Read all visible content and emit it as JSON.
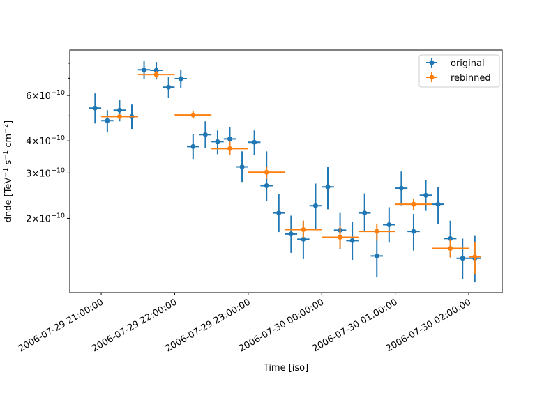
{
  "chart_data": {
    "type": "scatter",
    "xlabel": "Time [iso]",
    "ylabel": {
      "base": "dnde [TeV",
      "parts": [
        {
          "text": "dnde [TeV",
          "sup": false
        },
        {
          "text": "−1",
          "sup": true
        },
        {
          "text": " s",
          "sup": false
        },
        {
          "text": "−1",
          "sup": true
        },
        {
          "text": " cm",
          "sup": false
        },
        {
          "text": "−2",
          "sup": true
        },
        {
          "text": "]",
          "sup": false
        }
      ]
    },
    "yscale": "log",
    "ylim": [
      1.03e-10,
      9e-10
    ],
    "xlim": [
      "2006-07-29T20:34:20",
      "2006-07-30T02:27:20"
    ],
    "grid": false,
    "legend_position": "top-right",
    "x_ticks": [
      {
        "value": "2006-07-29T21:00:00",
        "label": "2006-07-29 21:00:00"
      },
      {
        "value": "2006-07-29T22:00:00",
        "label": "2006-07-29 22:00:00"
      },
      {
        "value": "2006-07-29T23:00:00",
        "label": "2006-07-29 23:00:00"
      },
      {
        "value": "2006-07-30T00:00:00",
        "label": "2006-07-30 00:00:00"
      },
      {
        "value": "2006-07-30T01:00:00",
        "label": "2006-07-30 01:00:00"
      },
      {
        "value": "2006-07-30T02:00:00",
        "label": "2006-07-30 02:00:00"
      }
    ],
    "y_ticks": [
      {
        "value": 2e-10,
        "mantissa": "2",
        "base": "×10",
        "exponent": "−10"
      },
      {
        "value": 3e-10,
        "mantissa": "3",
        "base": "×10",
        "exponent": "−10"
      },
      {
        "value": 4e-10,
        "mantissa": "4",
        "base": "×10",
        "exponent": "−10"
      },
      {
        "value": 6e-10,
        "mantissa": "6",
        "base": "×10",
        "exponent": "−10"
      }
    ],
    "y_minor_ticks": [
      5e-10,
      7e-10,
      8e-10
    ],
    "series": [
      {
        "name": "original",
        "color": "#1f77b4",
        "points": [
          {
            "t_start": "2006-07-29T20:50",
            "t_end": "2006-07-29T21:00",
            "y": 5.36e-10,
            "y_lo": 4.67e-10,
            "y_hi": 6.11e-10
          },
          {
            "t_start": "2006-07-29T21:00",
            "t_end": "2006-07-29T21:10",
            "y": 4.79e-10,
            "y_lo": 4.31e-10,
            "y_hi": 5.26e-10
          },
          {
            "t_start": "2006-07-29T21:10",
            "t_end": "2006-07-29T21:20",
            "y": 5.26e-10,
            "y_lo": 4.76e-10,
            "y_hi": 5.78e-10
          },
          {
            "t_start": "2006-07-29T21:20",
            "t_end": "2006-07-29T21:30",
            "y": 4.97e-10,
            "y_lo": 4.45e-10,
            "y_hi": 5.53e-10
          },
          {
            "t_start": "2006-07-29T21:30",
            "t_end": "2006-07-29T21:40",
            "y": 7.55e-10,
            "y_lo": 6.97e-10,
            "y_hi": 8.14e-10
          },
          {
            "t_start": "2006-07-29T21:40",
            "t_end": "2006-07-29T21:50",
            "y": 7.51e-10,
            "y_lo": 6.92e-10,
            "y_hi": 8.09e-10
          },
          {
            "t_start": "2006-07-29T21:50",
            "t_end": "2006-07-29T22:00",
            "y": 6.46e-10,
            "y_lo": 5.89e-10,
            "y_hi": 7.1e-10
          },
          {
            "t_start": "2006-07-29T22:00",
            "t_end": "2006-07-29T22:10",
            "y": 6.97e-10,
            "y_lo": 6.42e-10,
            "y_hi": 7.55e-10
          },
          {
            "t_start": "2006-07-29T22:10",
            "t_end": "2006-07-29T22:20",
            "y": 3.8e-10,
            "y_lo": 3.4e-10,
            "y_hi": 4.26e-10
          },
          {
            "t_start": "2006-07-29T22:20",
            "t_end": "2006-07-29T22:30",
            "y": 4.23e-10,
            "y_lo": 3.76e-10,
            "y_hi": 4.76e-10
          },
          {
            "t_start": "2006-07-29T22:30",
            "t_end": "2006-07-29T22:40",
            "y": 3.97e-10,
            "y_lo": 3.55e-10,
            "y_hi": 4.39e-10
          },
          {
            "t_start": "2006-07-29T22:40",
            "t_end": "2006-07-29T22:50",
            "y": 4.07e-10,
            "y_lo": 3.62e-10,
            "y_hi": 4.53e-10
          },
          {
            "t_start": "2006-07-29T22:50",
            "t_end": "2006-07-29T23:00",
            "y": 3.17e-10,
            "y_lo": 2.77e-10,
            "y_hi": 3.64e-10
          },
          {
            "t_start": "2006-07-29T23:00",
            "t_end": "2006-07-29T23:10",
            "y": 3.95e-10,
            "y_lo": 3.53e-10,
            "y_hi": 4.39e-10
          },
          {
            "t_start": "2006-07-29T23:10",
            "t_end": "2006-07-29T23:20",
            "y": 2.68e-10,
            "y_lo": 2.34e-10,
            "y_hi": 3.64e-10
          },
          {
            "t_start": "2006-07-29T23:20",
            "t_end": "2006-07-29T23:30",
            "y": 2.1e-10,
            "y_lo": 1.77e-10,
            "y_hi": 2.49e-10
          },
          {
            "t_start": "2006-07-29T23:30",
            "t_end": "2006-07-29T23:40",
            "y": 1.74e-10,
            "y_lo": 1.47e-10,
            "y_hi": 2.05e-10
          },
          {
            "t_start": "2006-07-29T23:40",
            "t_end": "2006-07-29T23:50",
            "y": 1.66e-10,
            "y_lo": 1.39e-10,
            "y_hi": 1.96e-10
          },
          {
            "t_start": "2006-07-29T23:50",
            "t_end": "2006-07-30T00:00",
            "y": 2.24e-10,
            "y_lo": 1.82e-10,
            "y_hi": 2.73e-10
          },
          {
            "t_start": "2006-07-30T00:00",
            "t_end": "2006-07-30T00:10",
            "y": 2.65e-10,
            "y_lo": 2.17e-10,
            "y_hi": 3.17e-10
          },
          {
            "t_start": "2006-07-30T00:10",
            "t_end": "2006-07-30T00:20",
            "y": 1.8e-10,
            "y_lo": 1.52e-10,
            "y_hi": 2.1e-10
          },
          {
            "t_start": "2006-07-30T00:20",
            "t_end": "2006-07-30T00:30",
            "y": 1.64e-10,
            "y_lo": 1.38e-10,
            "y_hi": 1.94e-10
          },
          {
            "t_start": "2006-07-30T00:30",
            "t_end": "2006-07-30T00:40",
            "y": 2.1e-10,
            "y_lo": 1.79e-10,
            "y_hi": 2.5e-10
          },
          {
            "t_start": "2006-07-30T00:40",
            "t_end": "2006-07-30T00:50",
            "y": 1.43e-10,
            "y_lo": 1.18e-10,
            "y_hi": 1.79e-10
          },
          {
            "t_start": "2006-07-30T00:50",
            "t_end": "2006-07-30T01:00",
            "y": 1.89e-10,
            "y_lo": 1.61e-10,
            "y_hi": 2.21e-10
          },
          {
            "t_start": "2006-07-30T01:00",
            "t_end": "2006-07-30T01:10",
            "y": 2.62e-10,
            "y_lo": 2.25e-10,
            "y_hi": 3.04e-10
          },
          {
            "t_start": "2006-07-30T01:10",
            "t_end": "2006-07-30T01:20",
            "y": 1.78e-10,
            "y_lo": 1.5e-10,
            "y_hi": 2.08e-10
          },
          {
            "t_start": "2006-07-30T01:20",
            "t_end": "2006-07-30T01:30",
            "y": 2.46e-10,
            "y_lo": 2.14e-10,
            "y_hi": 2.82e-10
          },
          {
            "t_start": "2006-07-30T01:30",
            "t_end": "2006-07-30T01:40",
            "y": 2.27e-10,
            "y_lo": 1.9e-10,
            "y_hi": 2.65e-10
          },
          {
            "t_start": "2006-07-30T01:40",
            "t_end": "2006-07-30T01:50",
            "y": 1.67e-10,
            "y_lo": 1.41e-10,
            "y_hi": 1.96e-10
          },
          {
            "t_start": "2006-07-30T01:50",
            "t_end": "2006-07-30T02:00",
            "y": 1.4e-10,
            "y_lo": 1.16e-10,
            "y_hi": 1.67e-10
          },
          {
            "t_start": "2006-07-30T02:00",
            "t_end": "2006-07-30T02:10",
            "y": 1.4e-10,
            "y_lo": 1.13e-10,
            "y_hi": 1.71e-10
          }
        ]
      },
      {
        "name": "rebinned",
        "color": "#ff7f0e",
        "points": [
          {
            "t_start": "2006-07-29T21:00",
            "t_end": "2006-07-29T21:30",
            "y": 4.97e-10,
            "y_lo": 4.85e-10,
            "y_hi": 5.1e-10
          },
          {
            "t_start": "2006-07-29T21:30",
            "t_end": "2006-07-29T22:00",
            "y": 7.23e-10,
            "y_lo": 7.01e-10,
            "y_hi": 7.46e-10
          },
          {
            "t_start": "2006-07-29T22:00",
            "t_end": "2006-07-29T22:30",
            "y": 5.04e-10,
            "y_lo": 4.88e-10,
            "y_hi": 5.23e-10
          },
          {
            "t_start": "2006-07-29T22:30",
            "t_end": "2006-07-29T23:00",
            "y": 3.73e-10,
            "y_lo": 3.53e-10,
            "y_hi": 3.97e-10
          },
          {
            "t_start": "2006-07-29T23:00",
            "t_end": "2006-07-29T23:30",
            "y": 3.02e-10,
            "y_lo": 2.85e-10,
            "y_hi": 3.17e-10
          },
          {
            "t_start": "2006-07-29T23:30",
            "t_end": "2006-07-30T00:00",
            "y": 1.81e-10,
            "y_lo": 1.68e-10,
            "y_hi": 1.96e-10
          },
          {
            "t_start": "2006-07-30T00:00",
            "t_end": "2006-07-30T00:30",
            "y": 1.69e-10,
            "y_lo": 1.53e-10,
            "y_hi": 1.86e-10
          },
          {
            "t_start": "2006-07-30T00:30",
            "t_end": "2006-07-30T01:00",
            "y": 1.78e-10,
            "y_lo": 1.64e-10,
            "y_hi": 1.91e-10
          },
          {
            "t_start": "2006-07-30T01:00",
            "t_end": "2006-07-30T01:30",
            "y": 2.27e-10,
            "y_lo": 2.16e-10,
            "y_hi": 2.38e-10
          },
          {
            "t_start": "2006-07-30T01:30",
            "t_end": "2006-07-30T02:00",
            "y": 1.53e-10,
            "y_lo": 1.41e-10,
            "y_hi": 1.66e-10
          },
          {
            "t_start": "2006-07-30T02:00",
            "t_end": "2006-07-30T02:10",
            "y": 1.42e-10,
            "y_lo": 1.21e-10,
            "y_hi": 1.62e-10
          }
        ]
      }
    ]
  }
}
